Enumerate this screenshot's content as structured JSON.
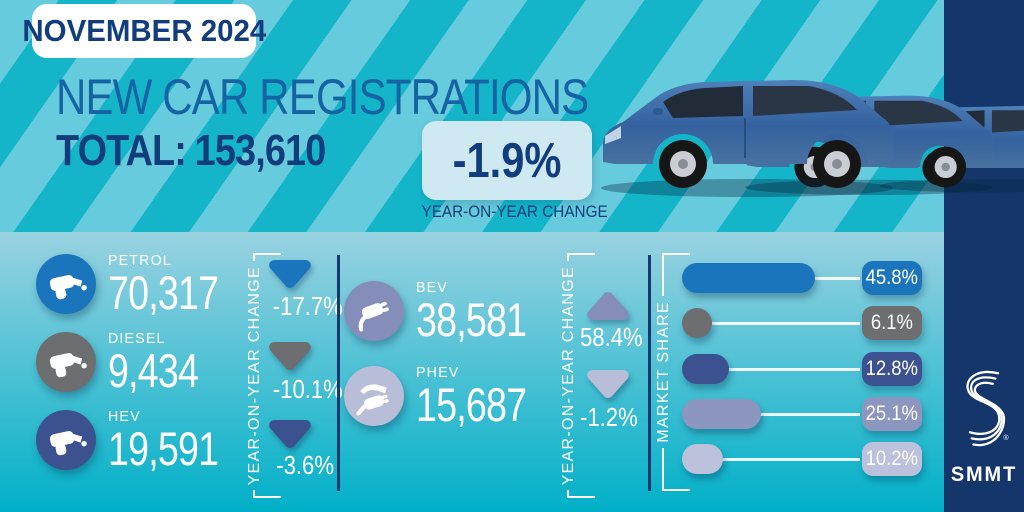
{
  "colors": {
    "stripe_light": "#66cbdc",
    "stripe_dark": "#14b5c9",
    "panel_top": "#99d2e1",
    "panel_bottom": "#00b0c8",
    "navy": "#14366b",
    "title_blue": "#1464a4",
    "dark_navy_text": "#123d7c",
    "yoy_box_bg": "#cfe9f2",
    "divider": "#17396f",
    "white": "#ffffff"
  },
  "header": {
    "badge": "NOVEMBER 2024",
    "title": "NEW CAR REGISTRATIONS",
    "total_label": "TOTAL:",
    "total_value": "153,610",
    "yoy_value": "-1.9%",
    "yoy_label": "YEAR-ON-YEAR CHANGE"
  },
  "yoy_axis_label": "YEAR-ON-YEAR CHANGE",
  "fuels_left": [
    {
      "label": "PETROL",
      "value": "70,317",
      "yoy": "-17.7%",
      "direction": "down",
      "color": "#1b75bc"
    },
    {
      "label": "DIESEL",
      "value": "9,434",
      "yoy": "-10.1%",
      "direction": "down",
      "color": "#6d6e70"
    },
    {
      "label": "HEV",
      "value": "19,591",
      "yoy": "-3.6%",
      "direction": "down",
      "color": "#3c5190"
    }
  ],
  "fuels_right": [
    {
      "label": "BEV",
      "value": "38,581",
      "yoy": "58.4%",
      "direction": "up",
      "color": "#858eba"
    },
    {
      "label": "PHEV",
      "value": "15,687",
      "yoy": "-1.2%",
      "direction": "down",
      "color": "#b8bdd8"
    }
  ],
  "market_share": {
    "label": "MARKET SHARE",
    "items": [
      {
        "name": "petrol",
        "pct": "45.8%",
        "value": 45.8,
        "color": "#1b75bc"
      },
      {
        "name": "diesel",
        "pct": "6.1%",
        "value": 6.1,
        "color": "#6d6e70"
      },
      {
        "name": "hev",
        "pct": "12.8%",
        "value": 12.8,
        "color": "#3c5190"
      },
      {
        "name": "bev",
        "pct": "25.1%",
        "value": 25.1,
        "color": "#8d96bf"
      },
      {
        "name": "phev",
        "pct": "10.2%",
        "value": 10.2,
        "color": "#bcc1dc"
      }
    ]
  },
  "logo": {
    "brand": "SMMT",
    "registered": "®"
  },
  "chart_data": {
    "type": "bar",
    "orientation": "horizontal",
    "title": "NEW CAR REGISTRATIONS",
    "subtitle": "NOVEMBER 2024",
    "total_registrations": 153610,
    "total_yoy_change_pct": -1.9,
    "categories": [
      "PETROL",
      "DIESEL",
      "HEV",
      "BEV",
      "PHEV"
    ],
    "series": [
      {
        "name": "registrations",
        "values": [
          70317,
          9434,
          19591,
          38581,
          15687
        ]
      },
      {
        "name": "year_on_year_change_pct",
        "values": [
          -17.7,
          -10.1,
          -3.6,
          58.4,
          -1.2
        ]
      },
      {
        "name": "market_share_pct",
        "values": [
          45.8,
          6.1,
          12.8,
          25.1,
          10.2
        ]
      }
    ],
    "xlabel": "MARKET SHARE",
    "ylabel": "",
    "legend": false,
    "grid": false
  }
}
